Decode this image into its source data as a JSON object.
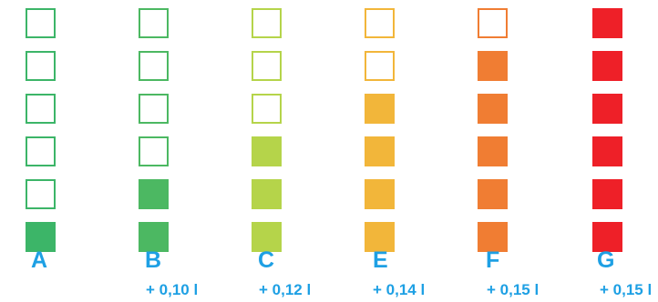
{
  "grades": [
    {
      "letter": "A",
      "extra": "",
      "color": "#3cb568",
      "filled_cells": 1,
      "total_cells": 6
    },
    {
      "letter": "B",
      "extra": "+ 0,10 l",
      "color": "#4cb862",
      "filled_cells": 2,
      "total_cells": 6
    },
    {
      "letter": "C",
      "extra": "+ 0,12 l",
      "color": "#b5d44a",
      "filled_cells": 3,
      "total_cells": 6
    },
    {
      "letter": "E",
      "extra": "+ 0,14 l",
      "color": "#f2b63a",
      "filled_cells": 4,
      "total_cells": 6
    },
    {
      "letter": "F",
      "extra": "+ 0,15 l",
      "color": "#f07d33",
      "filled_cells": 5,
      "total_cells": 6
    },
    {
      "letter": "G",
      "extra": "+ 0,15 l",
      "color": "#ee2028",
      "filled_cells": 6,
      "total_cells": 6
    }
  ]
}
